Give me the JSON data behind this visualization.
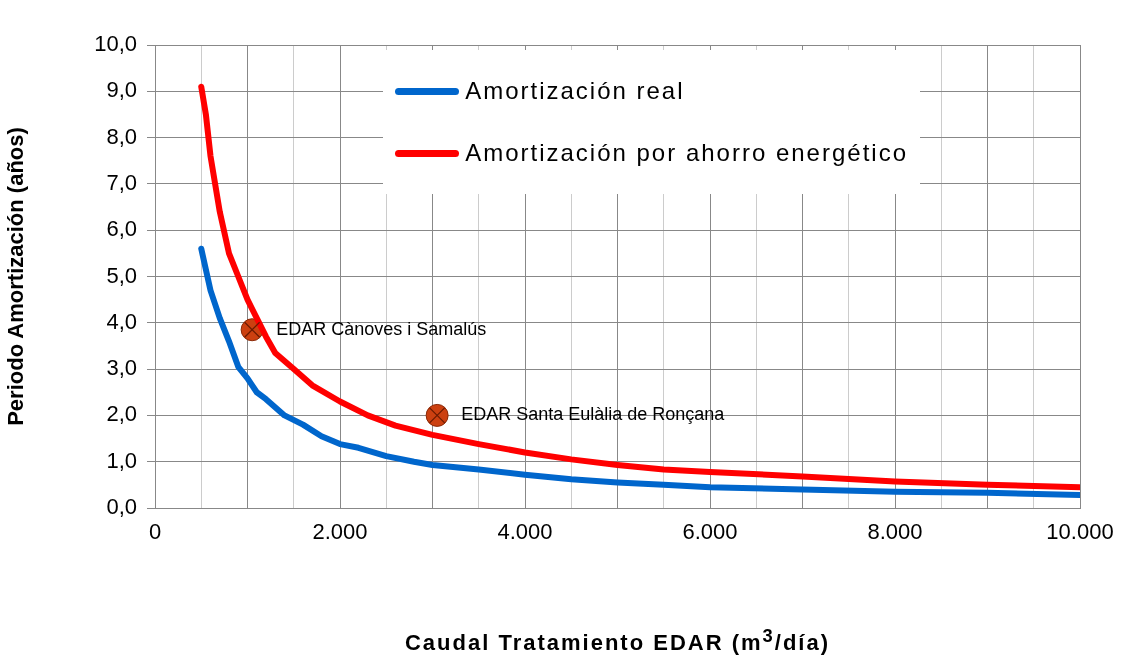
{
  "chart_data": {
    "type": "line",
    "xlabel": "Caudal Tratamiento EDAR (m$^{3}$/día)",
    "ylabel": "Periodo Amortización (años)",
    "xlim": [
      0,
      10000
    ],
    "xticks": [
      {
        "value": 0,
        "label": "0"
      },
      {
        "value": 500,
        "label": null
      },
      {
        "value": 1000,
        "label": null
      },
      {
        "value": 1500,
        "label": null
      },
      {
        "value": 2000,
        "label": "2.000"
      },
      {
        "value": 2500,
        "label": null
      },
      {
        "value": 3000,
        "label": null
      },
      {
        "value": 3500,
        "label": null
      },
      {
        "value": 4000,
        "label": "4.000"
      },
      {
        "value": 4500,
        "label": null
      },
      {
        "value": 5000,
        "label": null
      },
      {
        "value": 5500,
        "label": null
      },
      {
        "value": 6000,
        "label": "6.000"
      },
      {
        "value": 6500,
        "label": null
      },
      {
        "value": 7000,
        "label": null
      },
      {
        "value": 7500,
        "label": null
      },
      {
        "value": 8000,
        "label": "8.000"
      },
      {
        "value": 8500,
        "label": null
      },
      {
        "value": 9000,
        "label": null
      },
      {
        "value": 9500,
        "label": null
      },
      {
        "value": 10000,
        "label": "10.000"
      }
    ],
    "ylim": [
      0,
      10
    ],
    "yticks": [
      {
        "value": 0,
        "label": "0,0"
      },
      {
        "value": 1,
        "label": "1,0"
      },
      {
        "value": 2,
        "label": "2,0"
      },
      {
        "value": 3,
        "label": "3,0"
      },
      {
        "value": 4,
        "label": "4,0"
      },
      {
        "value": 5,
        "label": "5,0"
      },
      {
        "value": 6,
        "label": "6,0"
      },
      {
        "value": 7,
        "label": "7,0"
      },
      {
        "value": 8,
        "label": "8,0"
      },
      {
        "value": 9,
        "label": "9,0"
      },
      {
        "value": 10,
        "label": "10,0"
      }
    ],
    "grid": true,
    "legend": "top right",
    "marker": "none",
    "line_style": "solid",
    "series": [
      {
        "name": "Amortización real",
        "color": "#0066cc",
        "x": [
          500,
          600,
          700,
          800,
          900,
          1000,
          1100,
          1200,
          1400,
          1600,
          1800,
          2000,
          2200,
          2500,
          2800,
          3000,
          3500,
          4000,
          4500,
          5000,
          5500,
          6000,
          7000,
          8000,
          9000,
          10000
        ],
        "values": [
          5.6,
          4.7,
          4.1,
          3.6,
          3.05,
          2.8,
          2.5,
          2.35,
          2.0,
          1.8,
          1.55,
          1.38,
          1.3,
          1.12,
          1.0,
          0.93,
          0.83,
          0.72,
          0.62,
          0.55,
          0.5,
          0.45,
          0.4,
          0.35,
          0.33,
          0.28
        ]
      },
      {
        "name": "Amortización por ahorro energético",
        "color": "#ff0000",
        "x": [
          500,
          550,
          600,
          700,
          800,
          900,
          1000,
          1100,
          1200,
          1300,
          1500,
          1700,
          2000,
          2300,
          2600,
          3000,
          3500,
          4000,
          4500,
          5000,
          5500,
          6000,
          7000,
          8000,
          9000,
          10000
        ],
        "values": [
          9.1,
          8.5,
          7.6,
          6.4,
          5.5,
          5.0,
          4.5,
          4.1,
          3.7,
          3.35,
          3.0,
          2.65,
          2.3,
          2.0,
          1.78,
          1.58,
          1.38,
          1.2,
          1.05,
          0.93,
          0.83,
          0.78,
          0.68,
          0.57,
          0.5,
          0.45
        ]
      },
      {
        "type": "scatter",
        "color": "#cc4010",
        "marker": "circle",
        "x": [
          1050,
          3050
        ],
        "values": [
          3.85,
          2.0
        ]
      }
    ],
    "annotations": [
      {
        "text": "EDAR Cànoves i Samalús",
        "x": 1050,
        "y": 3.85
      },
      {
        "text": "EDAR Santa Eulàlia de Ronçana",
        "x": 3050,
        "y": 2.0
      }
    ]
  }
}
